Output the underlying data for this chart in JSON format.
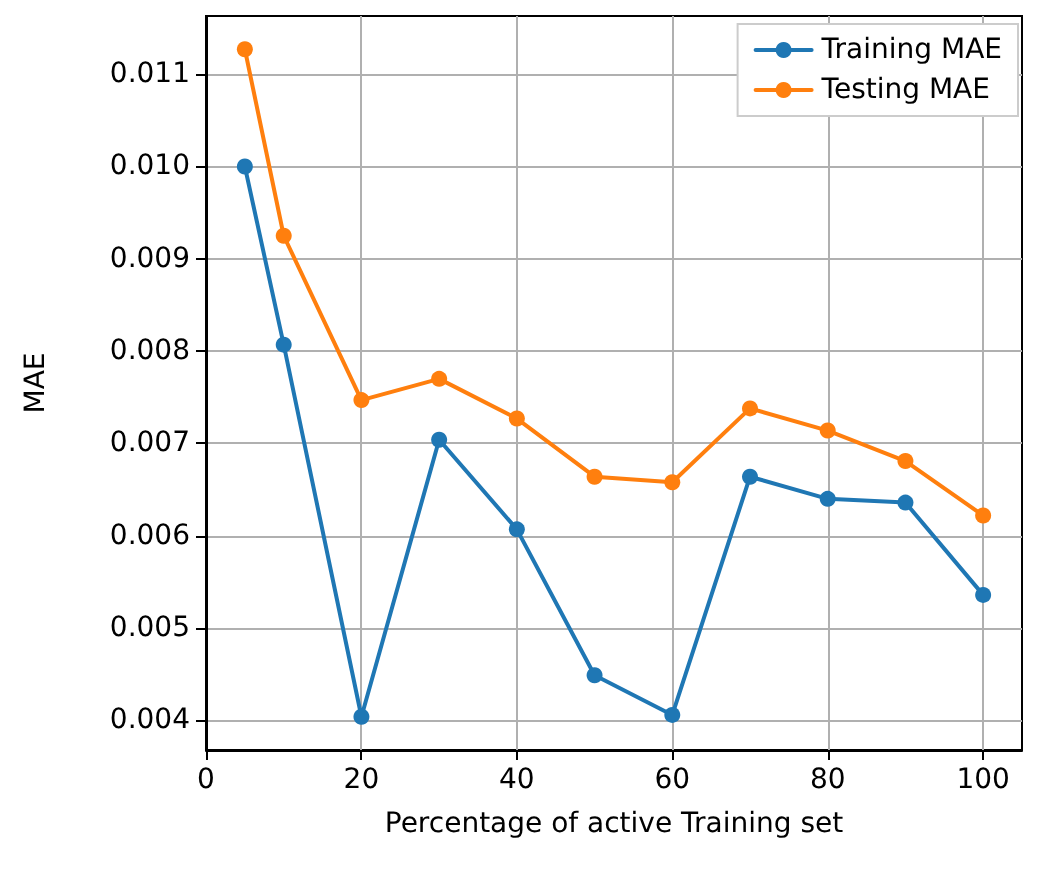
{
  "chart_data": {
    "type": "line",
    "xlabel": "Percentage of active Training set",
    "ylabel": "MAE",
    "x": [
      5,
      10,
      20,
      30,
      40,
      50,
      60,
      70,
      80,
      90,
      100
    ],
    "series": [
      {
        "name": "Training MAE",
        "color": "#1f77b4",
        "values": [
          0.01,
          0.00807,
          0.00404,
          0.00704,
          0.00607,
          0.00449,
          0.00406,
          0.00664,
          0.0064,
          0.00636,
          0.00536
        ]
      },
      {
        "name": "Testing MAE",
        "color": "#ff7f0e",
        "values": [
          0.01127,
          0.00925,
          0.00747,
          0.0077,
          0.00727,
          0.00664,
          0.00658,
          0.00738,
          0.00714,
          0.00681,
          0.00622
        ]
      }
    ],
    "xlim": [
      0,
      105
    ],
    "xticks": [
      0,
      20,
      40,
      60,
      80,
      100
    ],
    "ylim": [
      0.00368,
      0.01163
    ],
    "yticks": [
      0.004,
      0.005,
      0.006,
      0.007,
      0.008,
      0.009,
      {
        "value": 0.01,
        "label": "0.010"
      },
      0.011
    ],
    "grid": true,
    "legend": "top right",
    "marker": "circle",
    "line_style": "solid"
  }
}
